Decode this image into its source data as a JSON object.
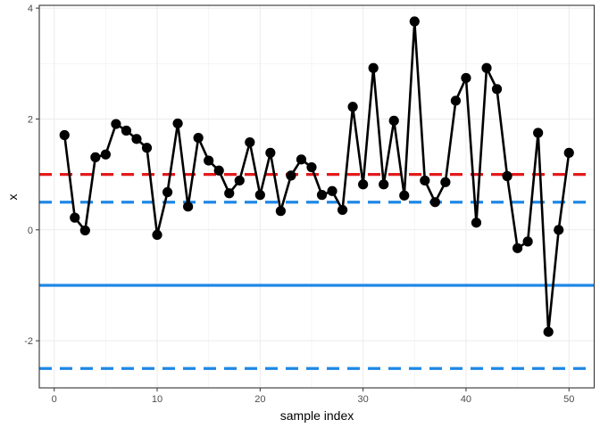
{
  "chart_data": {
    "type": "line",
    "title": "",
    "xlabel": "sample index",
    "ylabel": "x",
    "xlim": [
      -1.45,
      52.45
    ],
    "ylim": [
      -2.85,
      4.05
    ],
    "grid": true,
    "legend": "none",
    "x_ticks": [
      0,
      10,
      20,
      30,
      40,
      50
    ],
    "x_tick_labels": [
      "0",
      "10",
      "20",
      "30",
      "40",
      "50"
    ],
    "y_ticks": [
      -2,
      0,
      2,
      4
    ],
    "y_tick_labels": [
      "-2",
      "0",
      "2",
      "4"
    ],
    "series": [
      {
        "color": "#000000",
        "marker": "filled-circle",
        "x": [
          1,
          2,
          3,
          4,
          5,
          6,
          7,
          8,
          9,
          10,
          11,
          12,
          13,
          14,
          15,
          16,
          17,
          18,
          19,
          20,
          21,
          22,
          23,
          24,
          25,
          26,
          27,
          28,
          29,
          30,
          31,
          32,
          33,
          34,
          35,
          36,
          37,
          38,
          39,
          40,
          41,
          42,
          43,
          44,
          45,
          46,
          47,
          48,
          49,
          50
        ],
        "values": [
          1.71,
          0.22,
          -0.01,
          1.31,
          1.36,
          1.91,
          1.79,
          1.64,
          1.48,
          -0.09,
          0.68,
          1.92,
          0.42,
          1.66,
          1.25,
          1.07,
          0.66,
          0.89,
          1.58,
          0.63,
          1.39,
          0.34,
          0.98,
          1.27,
          1.13,
          0.63,
          0.7,
          0.36,
          2.22,
          0.82,
          2.92,
          0.82,
          1.97,
          0.62,
          3.76,
          0.89,
          0.5,
          0.86,
          2.33,
          2.74,
          0.13,
          2.92,
          2.54,
          0.97,
          -0.33,
          -0.21,
          1.75,
          -1.84,
          0.0,
          1.39
        ]
      }
    ],
    "reference_lines": [
      {
        "y": 1.0,
        "color": "#e41a1c",
        "style": "dashed"
      },
      {
        "y": 0.5,
        "color": "#1e88e5",
        "style": "dashed"
      },
      {
        "y": -1.0,
        "color": "#1e88e5",
        "style": "solid"
      },
      {
        "y": -2.5,
        "color": "#1e88e5",
        "style": "dashed"
      }
    ]
  }
}
